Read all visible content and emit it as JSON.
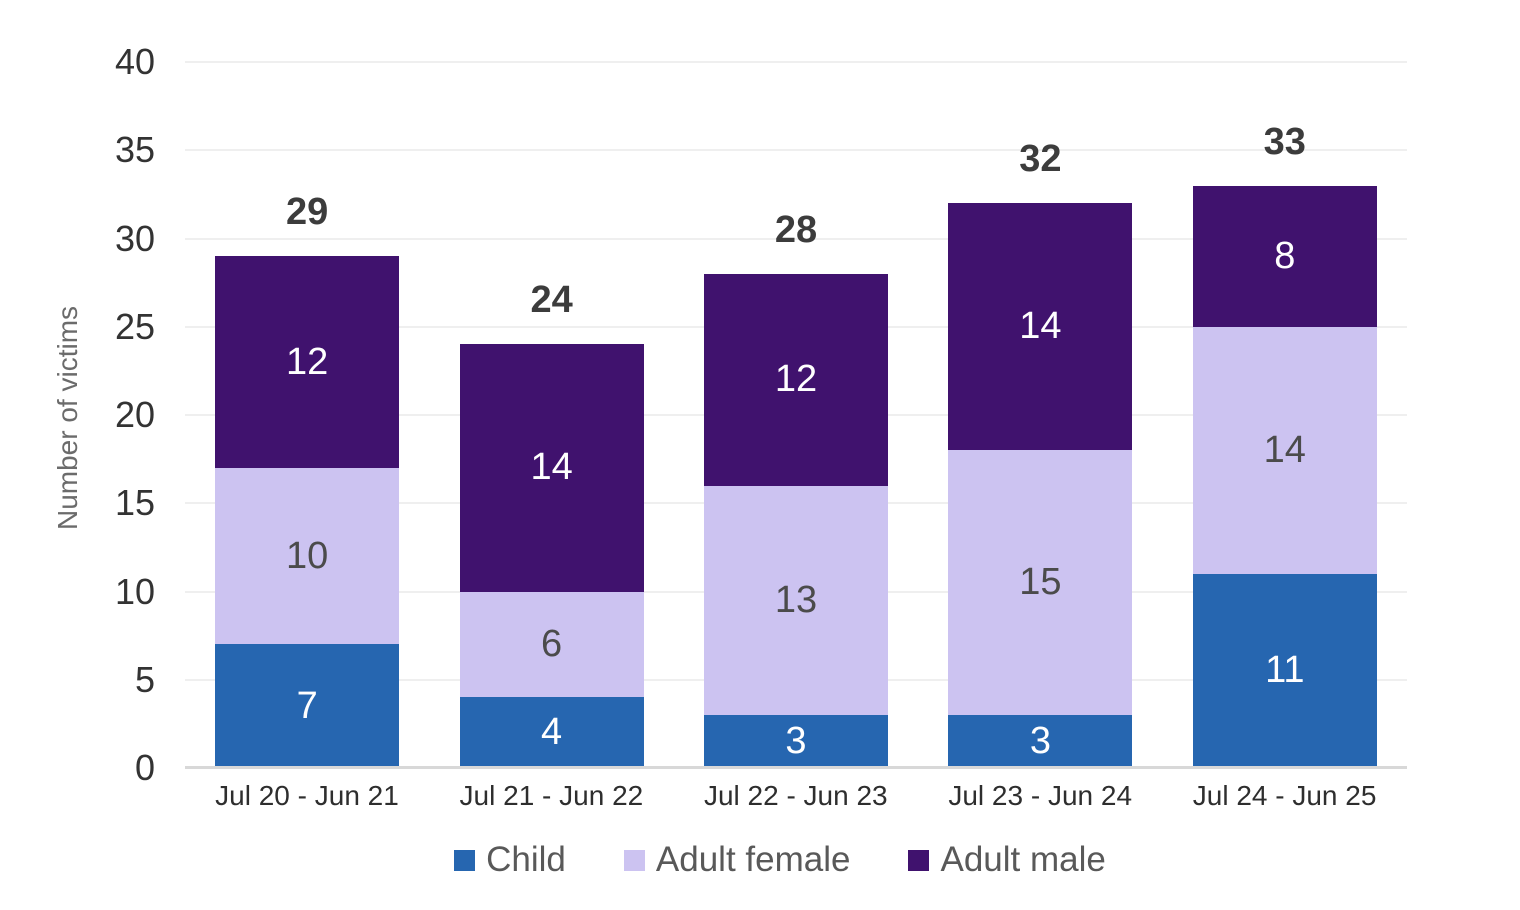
{
  "chart_data": {
    "type": "bar",
    "stacked": true,
    "title": "",
    "ylabel": "Number of victims",
    "xlabel": "",
    "categories": [
      "Jul 20 - Jun 21",
      "Jul 21 - Jun 22",
      "Jul 22 - Jun 23",
      "Jul 23 - Jun 24",
      "Jul 24 - Jun 25"
    ],
    "series": [
      {
        "name": "Child",
        "color": "#2666b0",
        "label_color": "#ffffff",
        "values": [
          7,
          4,
          3,
          3,
          11
        ]
      },
      {
        "name": "Adult female",
        "color": "#ccc3f1",
        "label_color": "#4b4b4b",
        "values": [
          10,
          6,
          13,
          15,
          14
        ]
      },
      {
        "name": "Adult male",
        "color": "#40126e",
        "label_color": "#ffffff",
        "values": [
          12,
          14,
          12,
          14,
          8
        ]
      }
    ],
    "totals": [
      29,
      24,
      28,
      32,
      33
    ],
    "ylim": [
      0,
      40
    ],
    "yticks": [
      0,
      5,
      10,
      15,
      20,
      25,
      30,
      35,
      40
    ],
    "grid": true,
    "legend_position": "bottom",
    "colors": {
      "gridline": "#efefef",
      "baseline": "#d8d8d8",
      "tick_text": "#333333",
      "total_text": "#3c3c3c",
      "xlabel_text": "#2e2e2e",
      "ylabel_text": "#6b6b6b",
      "legend_text": "#595959"
    }
  }
}
